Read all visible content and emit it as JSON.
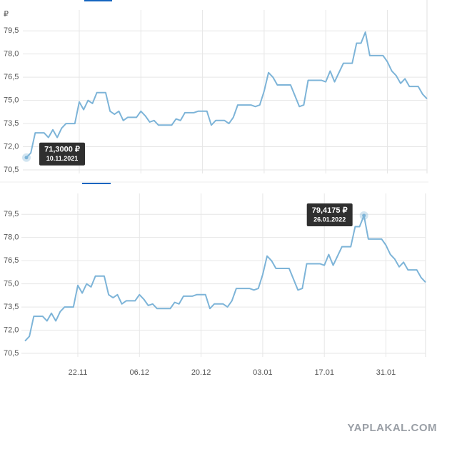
{
  "watermark": "YAPLAKAL.COM",
  "chart_data": [
    {
      "type": "line",
      "currency_label": "₽",
      "values": [
        71.3,
        71.6,
        72.9,
        72.9,
        72.9,
        72.6,
        73.1,
        72.6,
        73.2,
        73.5,
        73.5,
        73.5,
        74.9,
        74.4,
        75.0,
        74.8,
        75.5,
        75.5,
        75.5,
        74.3,
        74.1,
        74.3,
        73.7,
        73.9,
        73.9,
        73.9,
        74.3,
        74.0,
        73.6,
        73.7,
        73.4,
        73.4,
        73.4,
        73.4,
        73.8,
        73.7,
        74.2,
        74.2,
        74.2,
        74.3,
        74.3,
        74.3,
        73.4,
        73.7,
        73.7,
        73.7,
        73.5,
        73.9,
        74.7,
        74.7,
        74.7,
        74.7,
        74.6,
        74.7,
        75.6,
        76.8,
        76.5,
        76.0,
        76.0,
        76.0,
        76.0,
        75.3,
        74.6,
        74.7,
        76.3,
        76.3,
        76.3,
        76.3,
        76.2,
        76.9,
        76.2,
        76.8,
        77.4,
        77.4,
        77.4,
        78.7,
        78.7,
        79.4175,
        77.9,
        77.9,
        77.9,
        77.9,
        77.5,
        76.9,
        76.6,
        76.1,
        76.4,
        75.9,
        75.9,
        75.9,
        75.4,
        75.1
      ],
      "color": "#7db4d8",
      "ylim": [
        70.27,
        80.85
      ],
      "yticks": [
        {
          "value": 70.5,
          "label": "70,5"
        },
        {
          "value": 72,
          "label": "72,0"
        },
        {
          "value": 73.5,
          "label": "73,5"
        },
        {
          "value": 75,
          "label": "75,0"
        },
        {
          "value": 76.5,
          "label": "76,5"
        },
        {
          "value": 78,
          "label": "78,0"
        },
        {
          "value": 79.5,
          "label": "79,5"
        }
      ],
      "grid": true,
      "tooltip": {
        "index": 0,
        "label": "71,3000 ₽",
        "date": "10.11.2021"
      }
    },
    {
      "type": "line",
      "categories": [
        null,
        null,
        null,
        null,
        null,
        null,
        null,
        null,
        null,
        null,
        null,
        null,
        "22.11",
        null,
        null,
        null,
        null,
        null,
        null,
        null,
        null,
        null,
        null,
        null,
        null,
        null,
        "06.12",
        null,
        null,
        null,
        null,
        null,
        null,
        null,
        null,
        null,
        null,
        null,
        null,
        null,
        "20.12",
        null,
        null,
        null,
        null,
        null,
        null,
        null,
        null,
        null,
        null,
        null,
        null,
        null,
        "03.01",
        null,
        null,
        null,
        null,
        null,
        null,
        null,
        null,
        null,
        null,
        null,
        null,
        null,
        "17.01",
        null,
        null,
        null,
        null,
        null,
        null,
        null,
        null,
        null,
        null,
        null,
        null,
        null,
        "31.01",
        null,
        null,
        null,
        null,
        null,
        null,
        null,
        null,
        null
      ],
      "values": [
        71.3,
        71.6,
        72.9,
        72.9,
        72.9,
        72.6,
        73.1,
        72.6,
        73.2,
        73.5,
        73.5,
        73.5,
        74.9,
        74.4,
        75.0,
        74.8,
        75.5,
        75.5,
        75.5,
        74.3,
        74.1,
        74.3,
        73.7,
        73.9,
        73.9,
        73.9,
        74.3,
        74.0,
        73.6,
        73.7,
        73.4,
        73.4,
        73.4,
        73.4,
        73.8,
        73.7,
        74.2,
        74.2,
        74.2,
        74.3,
        74.3,
        74.3,
        73.4,
        73.7,
        73.7,
        73.7,
        73.5,
        73.9,
        74.7,
        74.7,
        74.7,
        74.7,
        74.6,
        74.7,
        75.6,
        76.8,
        76.5,
        76.0,
        76.0,
        76.0,
        76.0,
        75.3,
        74.6,
        74.7,
        76.3,
        76.3,
        76.3,
        76.3,
        76.2,
        76.9,
        76.2,
        76.8,
        77.4,
        77.4,
        77.4,
        78.7,
        78.7,
        79.4175,
        77.9,
        77.9,
        77.9,
        77.9,
        77.5,
        76.9,
        76.6,
        76.1,
        76.4,
        75.9,
        75.9,
        75.9,
        75.4,
        75.1
      ],
      "color": "#7db4d8",
      "ylim": [
        70.27,
        80.85
      ],
      "yticks": [
        {
          "value": 70.5,
          "label": "70,5"
        },
        {
          "value": 72,
          "label": "72,0"
        },
        {
          "value": 73.5,
          "label": "73,5"
        },
        {
          "value": 75,
          "label": "75,0"
        },
        {
          "value": 76.5,
          "label": "76,5"
        },
        {
          "value": 78,
          "label": "78,0"
        },
        {
          "value": 79.5,
          "label": "79,5"
        }
      ],
      "grid": true,
      "tooltip": {
        "index": 77,
        "label": "79,4175 ₽",
        "date": "26.01.2022"
      }
    }
  ]
}
